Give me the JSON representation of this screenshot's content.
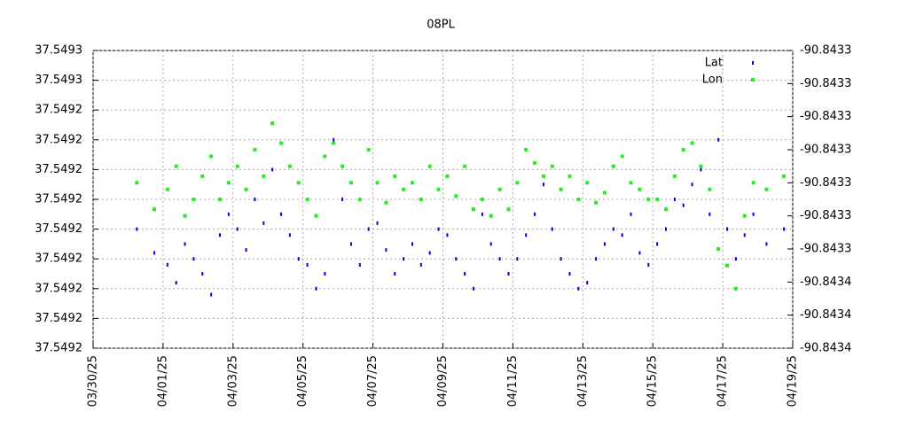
{
  "chart_data": {
    "type": "scatter",
    "title": "08PL",
    "x": [
      "03/31/25",
      "03/31/25",
      "04/01/25",
      "04/01/25",
      "04/01/25",
      "04/01/25",
      "04/02/25",
      "04/02/25",
      "04/02/25",
      "04/02/25",
      "04/03/25",
      "04/03/25",
      "04/03/25",
      "04/03/25",
      "04/04/25",
      "04/04/25",
      "04/04/25",
      "04/04/25",
      "04/05/25",
      "04/05/25",
      "04/05/25",
      "04/05/25",
      "04/06/25",
      "04/06/25",
      "04/06/25",
      "04/06/25",
      "04/07/25",
      "04/07/25",
      "04/07/25",
      "04/07/25",
      "04/08/25",
      "04/08/25",
      "04/08/25",
      "04/08/25",
      "04/09/25",
      "04/09/25",
      "04/09/25",
      "04/09/25",
      "04/10/25",
      "04/10/25",
      "04/10/25",
      "04/10/25",
      "04/11/25",
      "04/11/25",
      "04/11/25",
      "04/11/25",
      "04/12/25",
      "04/12/25",
      "04/12/25",
      "04/12/25",
      "04/13/25",
      "04/13/25",
      "04/13/25",
      "04/13/25",
      "04/14/25",
      "04/14/25",
      "04/14/25",
      "04/14/25",
      "04/15/25",
      "04/15/25",
      "04/15/25",
      "04/15/25",
      "04/16/25",
      "04/16/25",
      "04/16/25",
      "04/16/25",
      "04/17/25",
      "04/17/25",
      "04/17/25",
      "04/17/25",
      "04/18/25",
      "04/18/25"
    ],
    "series": [
      {
        "name": "Lat",
        "color": "#0000e0",
        "values": [
          37.5492,
          37.549192,
          37.549188,
          37.549182,
          37.549195,
          37.54919,
          37.549185,
          37.549178,
          37.549198,
          37.549205,
          37.5492,
          37.549193,
          37.54921,
          37.549202,
          37.54922,
          37.549205,
          37.549198,
          37.54919,
          37.549188,
          37.54918,
          37.549185,
          37.54923,
          37.54921,
          37.549195,
          37.549188,
          37.5492,
          37.549202,
          37.549193,
          37.549185,
          37.54919,
          37.549195,
          37.549188,
          37.549192,
          37.5492,
          37.549198,
          37.54919,
          37.549185,
          37.54918,
          37.549205,
          37.549195,
          37.54919,
          37.549185,
          37.54919,
          37.549198,
          37.549205,
          37.549215,
          37.5492,
          37.54919,
          37.549185,
          37.54918,
          37.549182,
          37.54919,
          37.549195,
          37.5492,
          37.549198,
          37.549205,
          37.549192,
          37.549188,
          37.549195,
          37.5492,
          37.54921,
          37.549208,
          37.549215,
          37.54922,
          37.549205,
          37.54923,
          37.5492,
          37.54919,
          37.549198,
          37.549205,
          37.549195,
          37.5492
        ]
      },
      {
        "name": "Lon",
        "color": "#22ee22",
        "axis": "y2",
        "values": [
          -90.84332,
          -90.843328,
          -90.843322,
          -90.843315,
          -90.84333,
          -90.843325,
          -90.843318,
          -90.843312,
          -90.843325,
          -90.84332,
          -90.843315,
          -90.843322,
          -90.84331,
          -90.843318,
          -90.843302,
          -90.843308,
          -90.843315,
          -90.84332,
          -90.843325,
          -90.84333,
          -90.843312,
          -90.843308,
          -90.843315,
          -90.84332,
          -90.843325,
          -90.84331,
          -90.84332,
          -90.843326,
          -90.843318,
          -90.843322,
          -90.84332,
          -90.843325,
          -90.843315,
          -90.843322,
          -90.843318,
          -90.843324,
          -90.843315,
          -90.843328,
          -90.843325,
          -90.84333,
          -90.843322,
          -90.843328,
          -90.84332,
          -90.84331,
          -90.843314,
          -90.843318,
          -90.843315,
          -90.843322,
          -90.843318,
          -90.843325,
          -90.84332,
          -90.843326,
          -90.843323,
          -90.843315,
          -90.843312,
          -90.84332,
          -90.843322,
          -90.843325,
          -90.843325,
          -90.843328,
          -90.843318,
          -90.84331,
          -90.843308,
          -90.843315,
          -90.843322,
          -90.84334,
          -90.843345,
          -90.843352,
          -90.84333,
          -90.84332,
          -90.843322,
          -90.843318
        ]
      }
    ],
    "xlim": [
      "03/30/25",
      "04/19/25"
    ],
    "xticks": [
      "03/30/25",
      "04/01/25",
      "04/03/25",
      "04/05/25",
      "04/07/25",
      "04/09/25",
      "04/11/25",
      "04/13/25",
      "04/15/25",
      "04/17/25",
      "04/19/25"
    ],
    "ylim": [
      37.54916,
      37.54926
    ],
    "yticks": [
      {
        "value": 37.54916,
        "label": "37.5492"
      },
      {
        "value": 37.54917,
        "label": "37.5492"
      },
      {
        "value": 37.54918,
        "label": "37.5492"
      },
      {
        "value": 37.54919,
        "label": "37.5492"
      },
      {
        "value": 37.5492,
        "label": "37.5492"
      },
      {
        "value": 37.54921,
        "label": "37.5492"
      },
      {
        "value": 37.54922,
        "label": "37.5492"
      },
      {
        "value": 37.54923,
        "label": "37.5492"
      },
      {
        "value": 37.54924,
        "label": "37.5492"
      },
      {
        "value": 37.54925,
        "label": "37.5493"
      },
      {
        "value": 37.54926,
        "label": "37.5493"
      }
    ],
    "y2lim": [
      -90.84337,
      -90.84328
    ],
    "y2ticks": [
      {
        "value": -90.84337,
        "label": "-90.8434"
      },
      {
        "value": -90.84336,
        "label": "-90.8434"
      },
      {
        "value": -90.84335,
        "label": "-90.8434"
      },
      {
        "value": -90.84334,
        "label": "-90.8433"
      },
      {
        "value": -90.84333,
        "label": "-90.8433"
      },
      {
        "value": -90.84332,
        "label": "-90.8433"
      },
      {
        "value": -90.84331,
        "label": "-90.8433"
      },
      {
        "value": -90.8433,
        "label": "-90.8433"
      },
      {
        "value": -90.84329,
        "label": "-90.8433"
      },
      {
        "value": -90.84328,
        "label": "-90.8433"
      }
    ],
    "grid": true,
    "legend": "top-right"
  }
}
